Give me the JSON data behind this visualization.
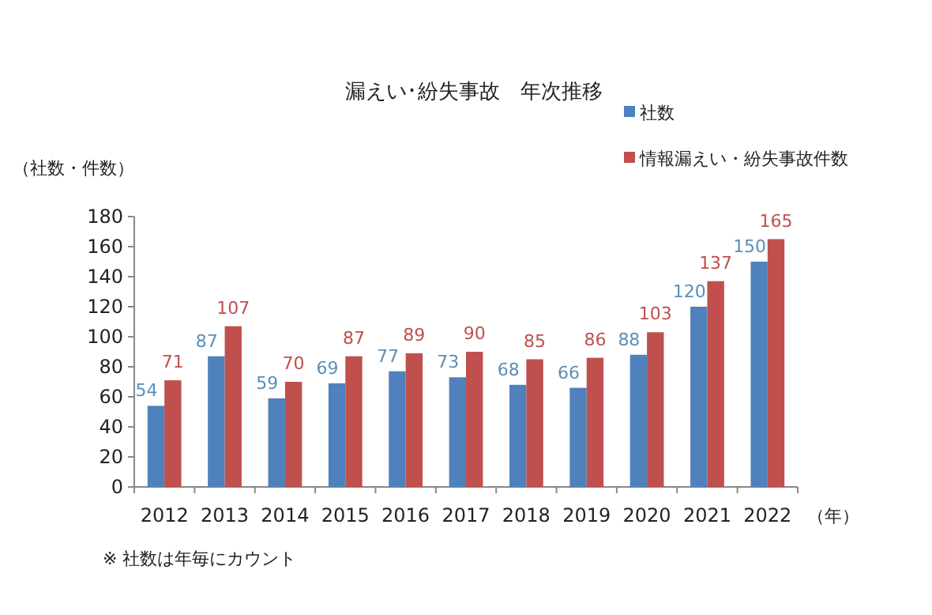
{
  "chart_data": {
    "type": "bar",
    "title": "漏えい･紛失事故　年次推移",
    "ylabel": "（社数・件数）",
    "xlabel": "（年）",
    "categories": [
      "2012",
      "2013",
      "2014",
      "2015",
      "2016",
      "2017",
      "2018",
      "2019",
      "2020",
      "2021",
      "2022"
    ],
    "series": [
      {
        "name": "社数",
        "color": "#4f81bd",
        "values": [
          54,
          87,
          59,
          69,
          77,
          73,
          68,
          66,
          88,
          120,
          150
        ]
      },
      {
        "name": "情報漏えい・紛失事故件数",
        "color": "#c0504d",
        "values": [
          71,
          107,
          70,
          87,
          89,
          90,
          85,
          86,
          103,
          137,
          165
        ]
      }
    ],
    "ylim": [
      0,
      180
    ],
    "yticks": [
      0,
      20,
      40,
      60,
      80,
      100,
      120,
      140,
      160,
      180
    ],
    "data_labels": true,
    "legend": "top right",
    "grid": false,
    "annotations": [
      "※ 社数は年毎にカウント"
    ]
  }
}
